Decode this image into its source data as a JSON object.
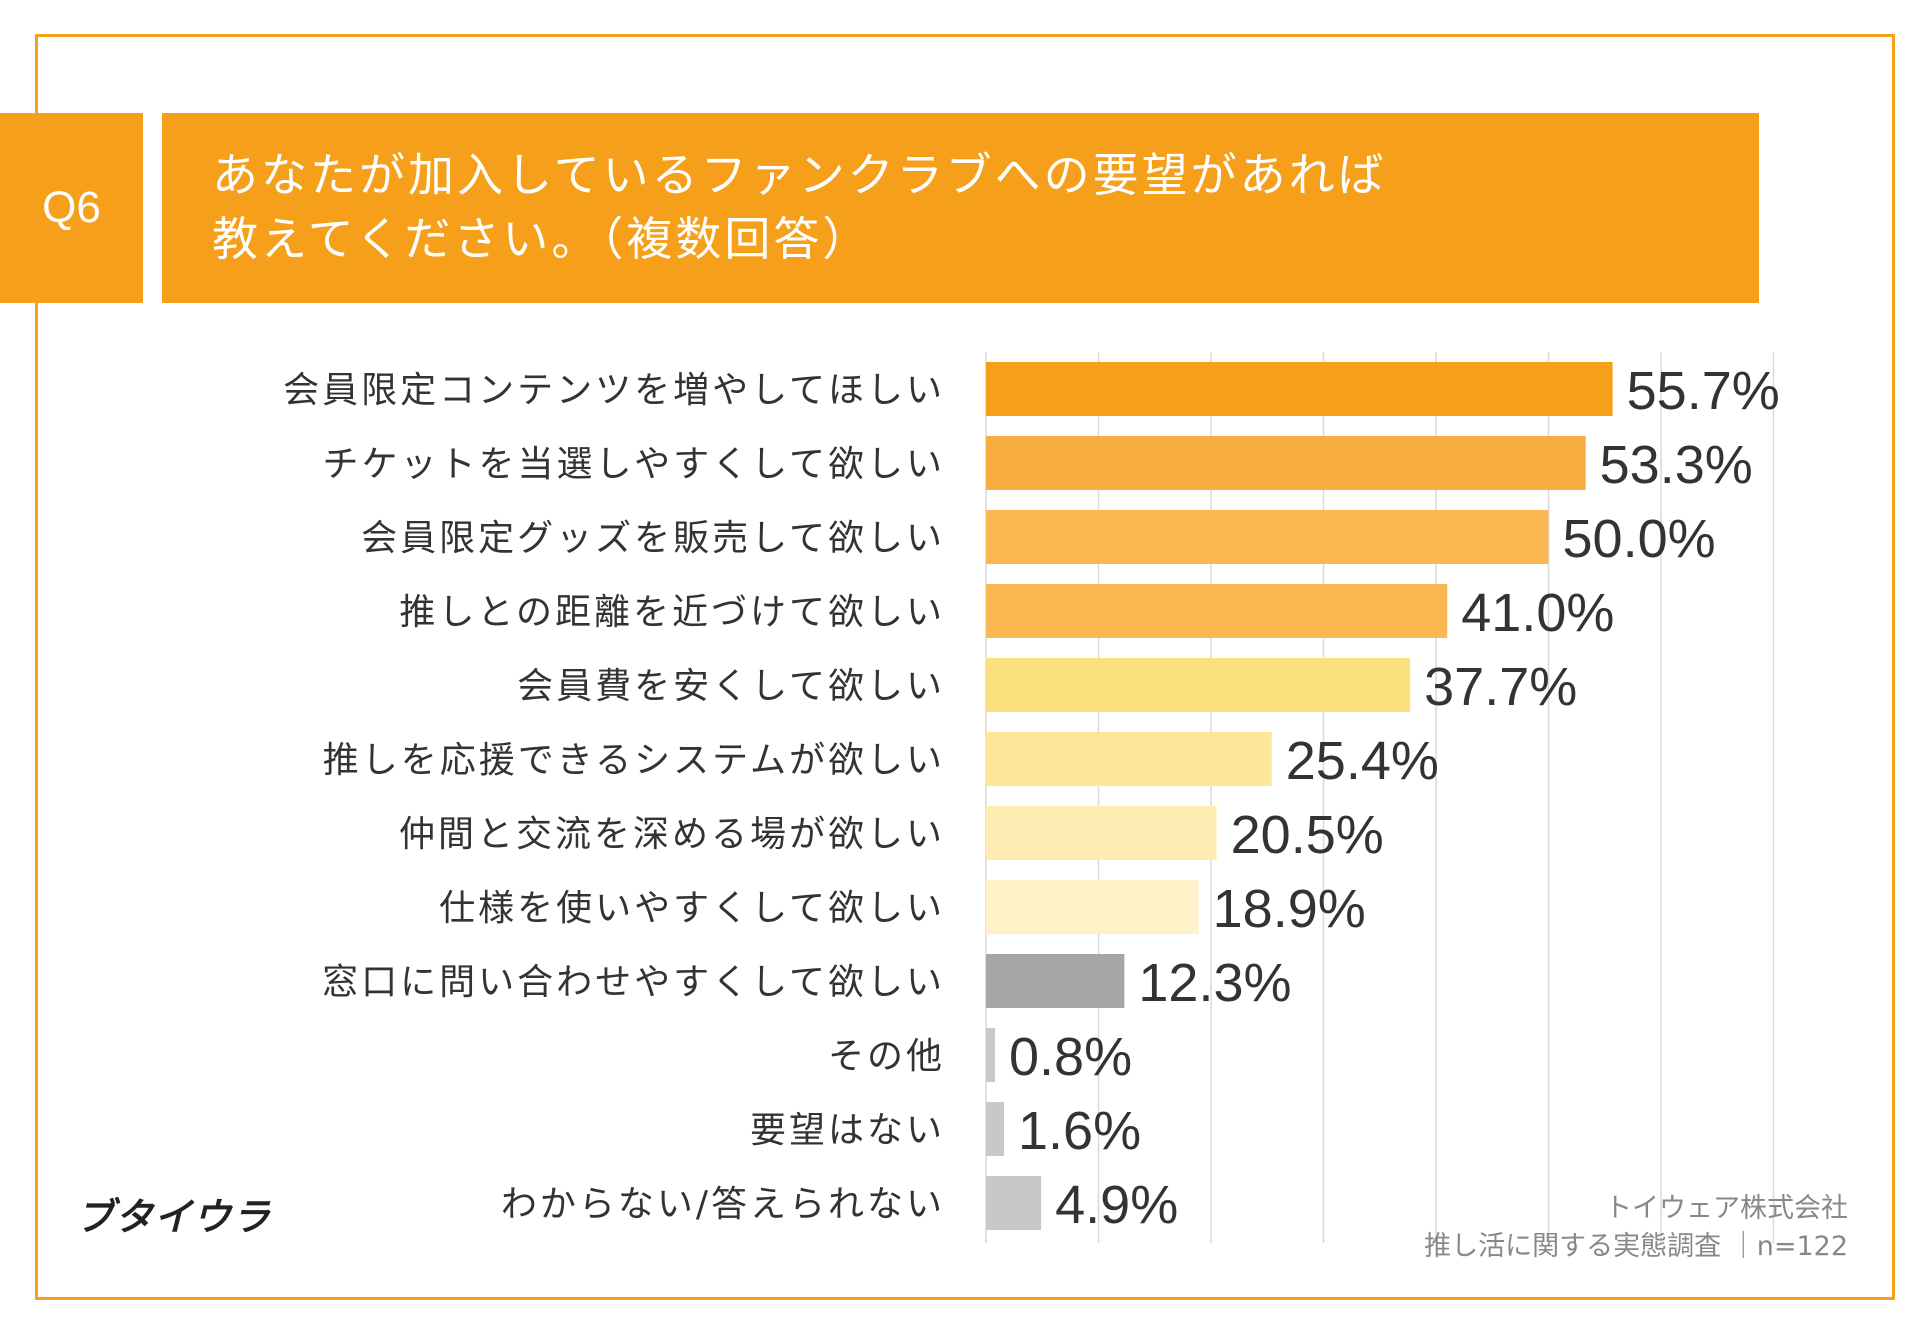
{
  "header": {
    "question_label": "Q6",
    "title_line1": "あなたが加入しているファンクラブへの要望があれば",
    "title_line2": "教えてください。（複数回答）"
  },
  "footer": {
    "brand": "ブタイウラ",
    "source_line1": "トイウェア株式会社",
    "source_line2": "推し活に関する実態調査 ｜n=122"
  },
  "colors": {
    "accent": "#f59f1a",
    "frame": "#f5a21a",
    "bar_shades": [
      "#f59f1a",
      "#f8ad3f",
      "#fab852",
      "#fab852",
      "#fde07e",
      "#fde697",
      "#feecb3",
      "#fff2c8",
      "#a6a6a6",
      "#c8c8c8",
      "#c8c8c8",
      "#c8c8c8"
    ]
  },
  "chart_data": {
    "type": "bar",
    "orientation": "horizontal",
    "title": "あなたが加入しているファンクラブへの要望があれば教えてください。（複数回答）",
    "categories": [
      "会員限定コンテンツを増やしてほしい",
      "チケットを当選しやすくして欲しい",
      "会員限定グッズを販売して欲しい",
      "推しとの距離を近づけて欲しい",
      "会員費を安くして欲しい",
      "推しを応援できるシステムが欲しい",
      "仲間と交流を深める場が欲しい",
      "仕様を使いやすくして欲しい",
      "窓口に問い合わせやすくして欲しい",
      "その他",
      "要望はない",
      "わからない/答えられない"
    ],
    "values": [
      55.7,
      53.3,
      50.0,
      41.0,
      37.7,
      25.4,
      20.5,
      18.9,
      12.3,
      0.8,
      1.6,
      4.9
    ],
    "value_labels": [
      "55.7%",
      "53.3%",
      "50.0%",
      "41.0%",
      "37.7%",
      "25.4%",
      "20.5%",
      "18.9%",
      "12.3%",
      "0.8%",
      "1.6%",
      "4.9%"
    ],
    "xlim": [
      0,
      70
    ],
    "grid": true,
    "unit": "%"
  }
}
